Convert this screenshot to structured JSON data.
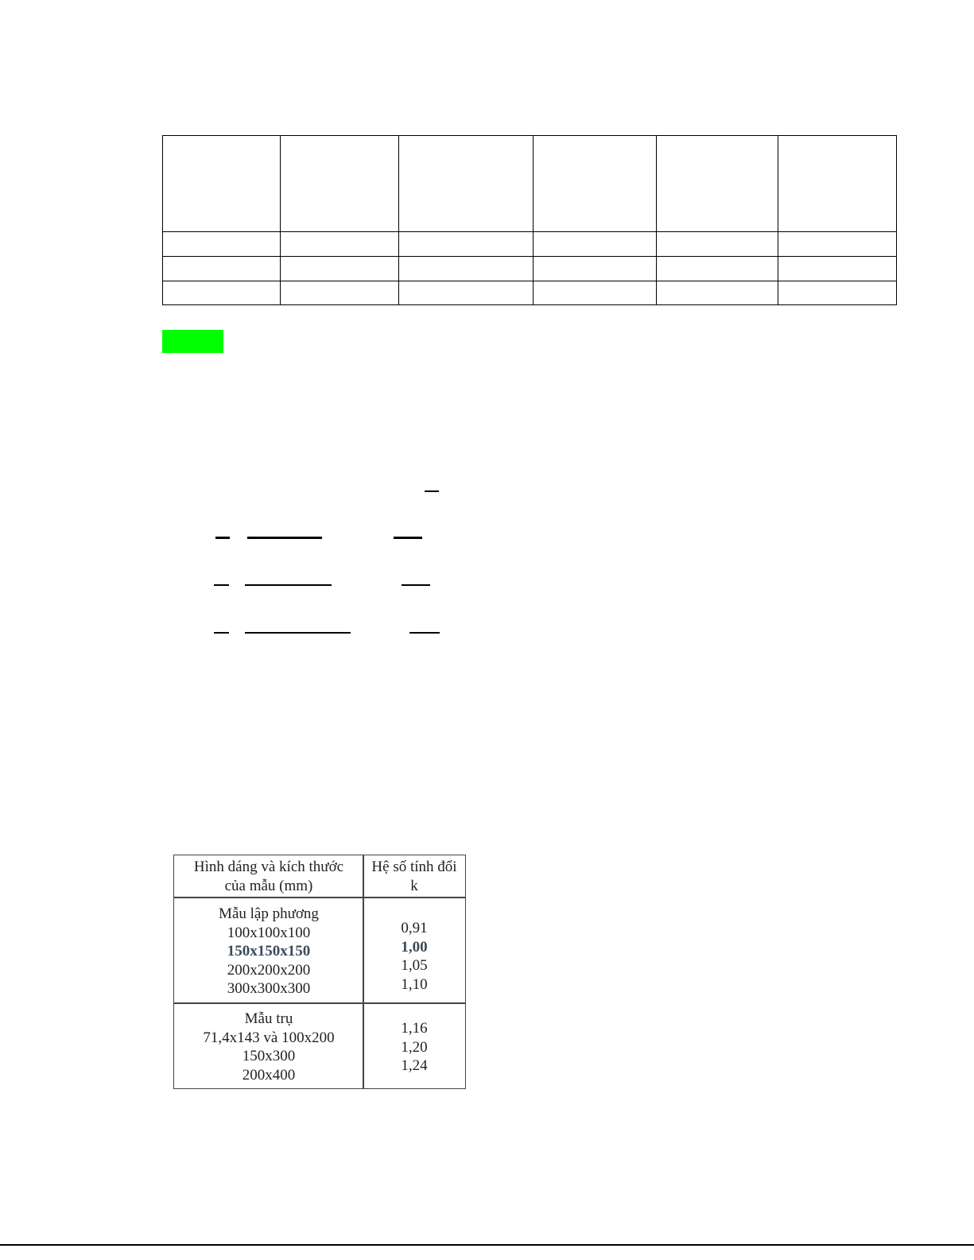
{
  "empty_table": {
    "columns": 6,
    "rows": 4
  },
  "highlight_color": "#00ff00",
  "reference_table": {
    "header": {
      "col1": [
        "Hình dáng và kích thước",
        "của mẫu (mm)"
      ],
      "col2": [
        "Hệ số tính đổi",
        "k"
      ]
    },
    "groups": [
      {
        "title": "Mẫu lập phương",
        "sizes": [
          "100x100x100",
          "150x150x150",
          "200x200x200",
          "300x300x300"
        ],
        "k": [
          "0,91",
          "1,00",
          "1,05",
          "1,10"
        ],
        "highlighted": "150x150x150"
      },
      {
        "title": "Mẫu trụ",
        "sizes": [
          "71,4x143 và 100x200",
          "150x300",
          "200x400"
        ],
        "k": [
          "1,16",
          "1,20",
          "1,24"
        ]
      }
    ]
  }
}
